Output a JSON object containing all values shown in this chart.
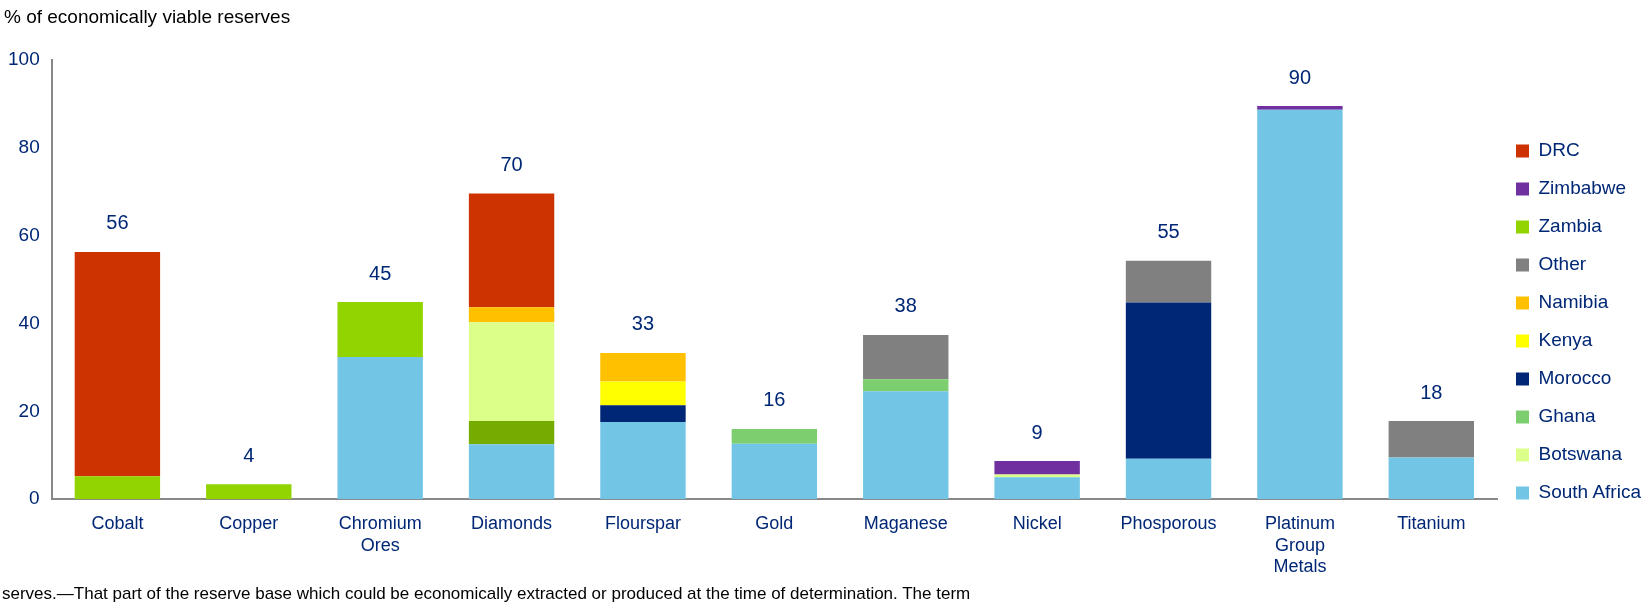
{
  "chart_data": {
    "type": "bar",
    "stacked": true,
    "ylabel": "% of economically viable reserves",
    "categories": [
      "Cobalt",
      "Copper",
      "Chromium Ores",
      "Diamonds",
      "Flourspar",
      "Gold",
      "Maganese",
      "Nickel",
      "Phosporous",
      "Platinum Group Metals",
      "Titanium"
    ],
    "series": [
      {
        "name": "South Africa",
        "color": "#72c5e5",
        "values": [
          null,
          null,
          32.4,
          12.5,
          17.6,
          12.6,
          24.6,
          5.0,
          9.2,
          88.7,
          9.5
        ]
      },
      {
        "color": "#76ab00",
        "values": [
          null,
          null,
          null,
          5.3,
          null,
          null,
          null,
          null,
          null,
          null,
          null
        ]
      },
      {
        "name": "Botswana",
        "color": "#dcff8a",
        "values": [
          null,
          null,
          null,
          22.5,
          null,
          null,
          null,
          0.6,
          null,
          null,
          null
        ]
      },
      {
        "name": "Ghana",
        "color": "#7dce6f",
        "values": [
          null,
          null,
          null,
          null,
          null,
          3.4,
          2.7,
          null,
          null,
          null,
          null
        ]
      },
      {
        "name": "Morocco",
        "color": "#002776",
        "values": [
          null,
          null,
          null,
          null,
          3.8,
          null,
          null,
          null,
          35.6,
          null,
          null
        ]
      },
      {
        "name": "Kenya",
        "color": "#ffff00",
        "values": [
          null,
          null,
          null,
          null,
          5.4,
          null,
          null,
          null,
          null,
          null,
          null
        ]
      },
      {
        "name": "Namibia",
        "color": "#ffc000",
        "values": [
          null,
          null,
          null,
          3.4,
          6.5,
          null,
          null,
          null,
          null,
          null,
          null
        ]
      },
      {
        "name": "Other",
        "color": "#808080",
        "values": [
          null,
          null,
          null,
          null,
          null,
          null,
          10.1,
          null,
          9.5,
          null,
          8.3
        ]
      },
      {
        "name": "Zambia",
        "color": "#92d400",
        "values": [
          5.2,
          3.4,
          12.5,
          null,
          null,
          null,
          null,
          null,
          null,
          null,
          null
        ]
      },
      {
        "name": "Zimbabwe",
        "color": "#7030a0",
        "values": [
          null,
          null,
          null,
          null,
          null,
          null,
          null,
          3.1,
          null,
          0.8,
          null
        ]
      },
      {
        "name": "DRC",
        "color": "#cc3300",
        "values": [
          51.1,
          null,
          null,
          25.9,
          null,
          null,
          null,
          null,
          null,
          null,
          null
        ]
      }
    ],
    "totals": [
      "56",
      "4",
      "45",
      "70",
      "33",
      "16",
      "38",
      "9",
      "55",
      "90",
      "18"
    ],
    "ylim": [
      0,
      100
    ],
    "yticks": [
      0,
      20,
      40,
      60,
      80,
      100
    ],
    "grid": false,
    "legend": "right",
    "annotations": [
      "serves.—That part of the reserve base which could be economically extracted or produced at the time of determination. The term"
    ]
  }
}
